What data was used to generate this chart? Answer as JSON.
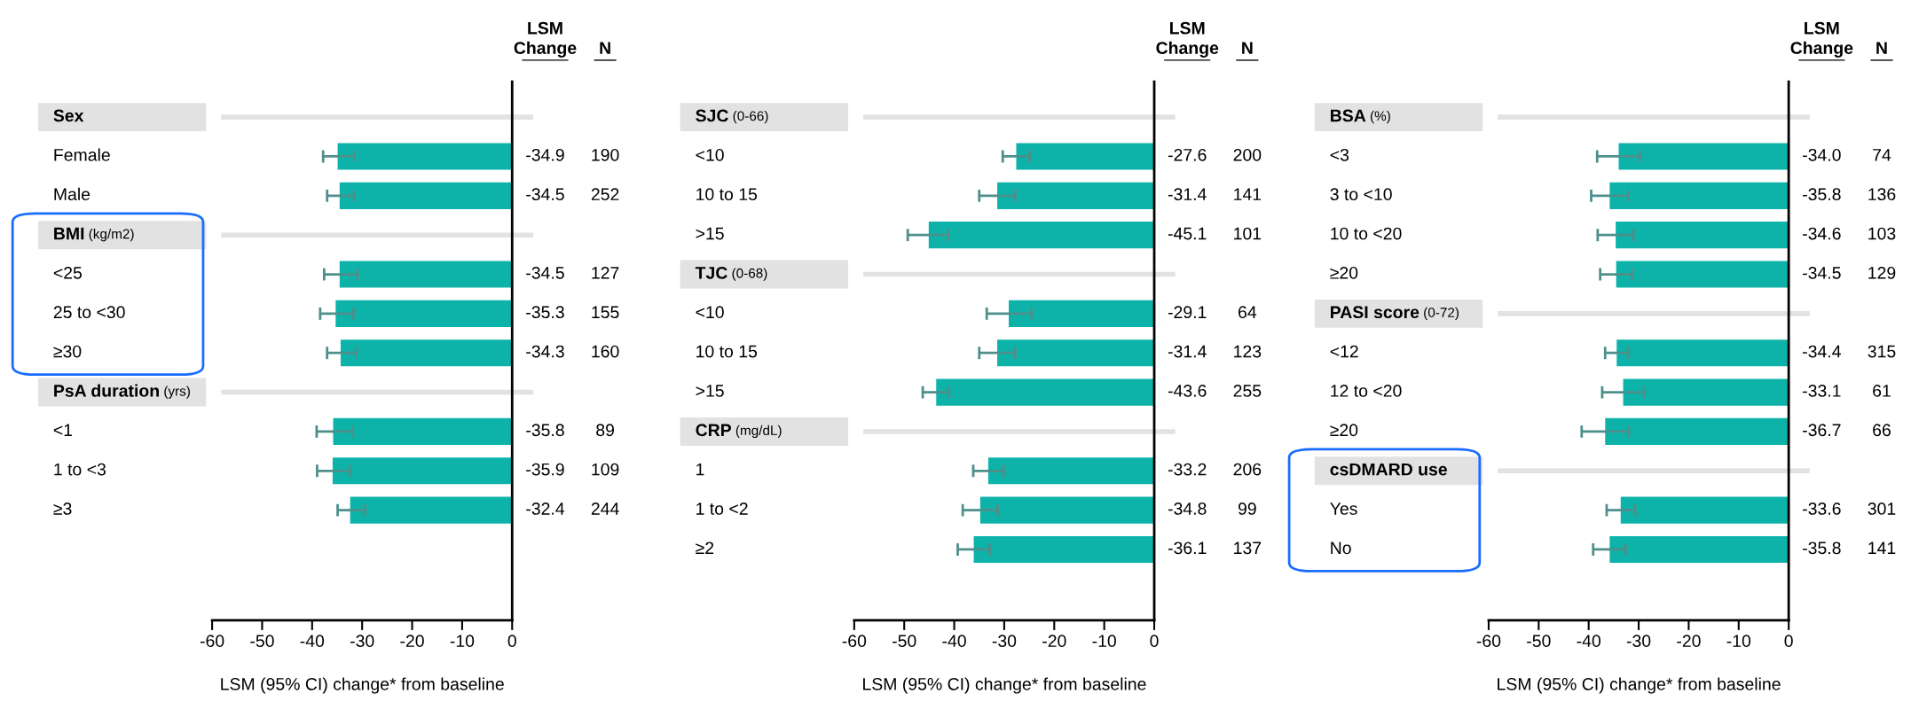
{
  "chart_data": [
    {
      "type": "bar",
      "orientation": "horizontal",
      "color": "#0db3a9",
      "data_labels": true,
      "xlabel": "LSM (95% CI) change* from baseline",
      "xlim": [
        -60,
        0
      ],
      "xticks": [
        -60,
        -50,
        -40,
        -30,
        -20,
        -10,
        0
      ],
      "categories": [
        "Sex",
        "Female",
        "Male",
        "BMI (kg/m2)",
        "<25",
        "25 to <30",
        "≥30",
        "PsA duration (yrs)",
        "<1",
        "1 to <3",
        "≥3"
      ],
      "values": [
        null,
        -34.9,
        -34.5,
        null,
        -34.5,
        -35.3,
        -34.3,
        null,
        -35.8,
        -35.9,
        -32.4
      ],
      "errors": [
        null,
        [
          -37.8,
          -31.5
        ],
        [
          -37.0,
          -31.6
        ],
        null,
        [
          -37.6,
          -30.9
        ],
        [
          -38.4,
          -31.7
        ],
        [
          -37.0,
          -31.2
        ],
        null,
        [
          -39.1,
          -31.9
        ],
        [
          -39.0,
          -32.3
        ],
        [
          -34.9,
          -29.4
        ]
      ],
      "annotations": [
        "LSM\nChange",
        "N",
        "190",
        "252",
        "127",
        "155",
        "160",
        "89",
        "109",
        "244"
      ]
    },
    {
      "type": "bar",
      "orientation": "horizontal",
      "color": "#0db3a9",
      "data_labels": true,
      "xlabel": "LSM (95% CI) change* from baseline",
      "xlim": [
        -60,
        0
      ],
      "xticks": [
        -60,
        -50,
        -40,
        -30,
        -20,
        -10,
        0
      ],
      "categories": [
        "SJC (0-66)",
        "<10",
        "10 to 15",
        ">15",
        "TJC (0-68)",
        "<10",
        "10 to 15",
        ">15",
        "CRP (mg/dL)",
        "1",
        "1 to <2",
        "≥2"
      ],
      "values": [
        null,
        -27.6,
        -31.4,
        -45.1,
        null,
        -29.1,
        -31.4,
        -43.6,
        null,
        -33.2,
        -34.8,
        -36.1
      ],
      "errors": [
        null,
        [
          -30.3,
          -24.9
        ],
        [
          -35.0,
          -27.8
        ],
        [
          -49.3,
          -41.2
        ],
        null,
        [
          -33.5,
          -24.5
        ],
        [
          -35.0,
          -27.8
        ],
        [
          -46.3,
          -41.1
        ],
        null,
        [
          -36.2,
          -30.1
        ],
        [
          -38.3,
          -31.3
        ],
        [
          -39.3,
          -32.9
        ]
      ],
      "annotations": [
        "LSM\nChange",
        "N",
        "200",
        "141",
        "101",
        "64",
        "123",
        "255",
        "206",
        "99",
        "137"
      ]
    },
    {
      "type": "bar",
      "orientation": "horizontal",
      "color": "#0db3a9",
      "xlabel": "LSM (95% CI) change* from baseline",
      "xlim": [
        -60,
        0
      ],
      "xticks": [
        -60,
        -50,
        -40,
        -30,
        -20,
        -10,
        0
      ],
      "categories": [
        "BSA (%)",
        "<3",
        "3 to <10",
        "10 to <20",
        "≥20",
        "PASI score (0-72)",
        "<12",
        "12 to <20",
        "≥20",
        "csDMARD use",
        "Yes",
        "No"
      ],
      "values": [
        null,
        -34.0,
        -35.8,
        -34.6,
        -34.5,
        null,
        -34.4,
        -33.1,
        -36.7,
        null,
        -33.6,
        -35.8
      ],
      "value_labels": [
        null,
        "-34.0",
        "-35.8",
        "-34.6",
        "-34.5",
        null,
        "-34.4",
        "-33.1",
        "-36.7",
        null,
        "-33.6",
        "-35.8"
      ],
      "errors": [
        null,
        [
          -38.3,
          -29.7
        ],
        [
          -39.5,
          -32.1
        ],
        [
          -38.2,
          -31.0
        ],
        [
          -37.7,
          -31.3
        ],
        null,
        [
          -36.7,
          -32.1
        ],
        [
          -37.3,
          -28.9
        ],
        [
          -41.4,
          -32.0
        ],
        null,
        [
          -36.4,
          -30.7
        ],
        [
          -39.1,
          -32.6
        ]
      ],
      "annotations": [
        "LSM\nChange",
        "N",
        "74",
        "136",
        "103",
        "129",
        "315",
        "61",
        "66",
        "301",
        "141"
      ]
    }
  ]
}
